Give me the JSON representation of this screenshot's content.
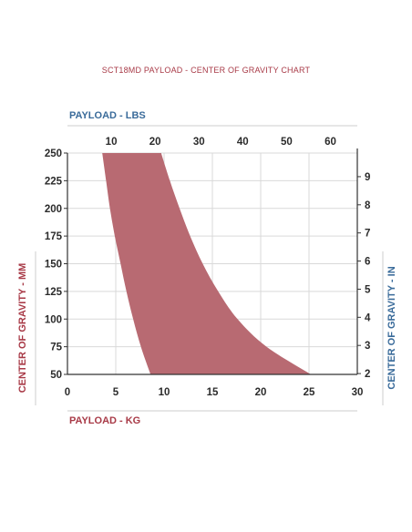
{
  "colors": {
    "red": "#a83a47",
    "blue": "#3a6b9a",
    "fill": "#b86a72",
    "grid": "#d9d9d9",
    "axis": "#333333"
  },
  "chart_data": {
    "type": "area",
    "title": "SCT18MD PAYLOAD - CENTER OF GRAVITY CHART",
    "xlabel": "PAYLOAD - KG",
    "ylabel": "CENTER OF GRAVITY - MM",
    "x2label": "PAYLOAD - LBS",
    "y2label": "CENTER OF GRAVITY - IN",
    "xlim": [
      0,
      30
    ],
    "ylim": [
      50,
      250
    ],
    "x2lim": [
      0,
      66.14
    ],
    "y2lim": [
      1.97,
      9.84
    ],
    "xticks": [
      0,
      5,
      10,
      15,
      20,
      25,
      30
    ],
    "yticks": [
      50,
      75,
      100,
      125,
      150,
      175,
      200,
      225,
      250
    ],
    "x2ticks": [
      10,
      20,
      30,
      40,
      50,
      60
    ],
    "y2ticks": [
      2,
      3,
      4,
      5,
      6,
      7,
      8,
      9
    ],
    "grid": true,
    "series": [
      {
        "role": "lower-bound",
        "values": [
          [
            3.6,
            250
          ],
          [
            4.0,
            225
          ],
          [
            4.4,
            200
          ],
          [
            4.9,
            175
          ],
          [
            5.5,
            150
          ],
          [
            6.1,
            125
          ],
          [
            6.8,
            100
          ],
          [
            7.6,
            75
          ],
          [
            8.6,
            50
          ]
        ]
      },
      {
        "role": "upper-bound",
        "values": [
          [
            9.7,
            250
          ],
          [
            10.6,
            225
          ],
          [
            11.6,
            200
          ],
          [
            12.7,
            175
          ],
          [
            14.0,
            150
          ],
          [
            15.6,
            125
          ],
          [
            17.6,
            100
          ],
          [
            20.6,
            75
          ],
          [
            25.2,
            50
          ]
        ]
      }
    ]
  }
}
